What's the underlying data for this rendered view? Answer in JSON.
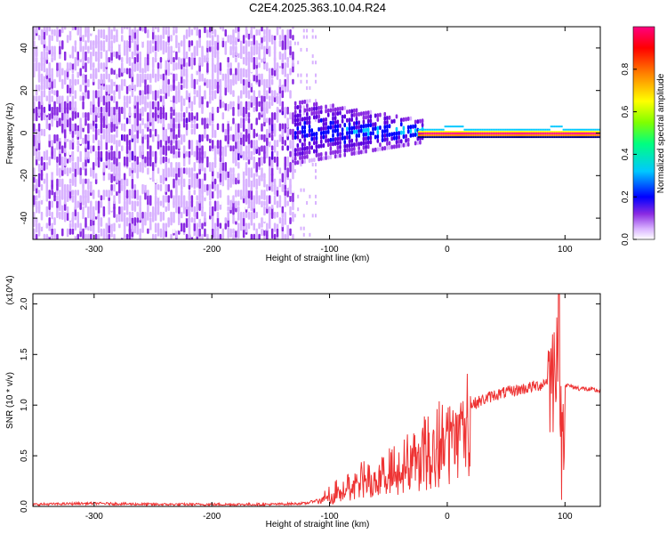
{
  "title": "C2E4.2025.363.10.04.R24",
  "chart_data": [
    {
      "type": "heatmap",
      "xlabel": "Height of straight line (km)",
      "ylabel": "Frequency (Hz)",
      "xlim": [
        -352,
        130
      ],
      "ylim": [
        -50,
        50
      ],
      "xticks": [
        -300,
        -200,
        -100,
        0,
        100
      ],
      "yticks": [
        -40,
        -20,
        0,
        20,
        40
      ],
      "colorbar": {
        "label": "Normalized spectral amplitude",
        "range": [
          0,
          1
        ],
        "ticks": [
          "0.0",
          "0.2",
          "0.4",
          "0.6",
          "0.8"
        ],
        "colors": [
          "#ffffff",
          "#d9b3ff",
          "#8a2be2",
          "#5b00e0",
          "#0000ff",
          "#00c8ff",
          "#00ff80",
          "#80ff00",
          "#ffff00",
          "#ff8000",
          "#ff0000",
          "#ff0080"
        ]
      },
      "features": [
        {
          "x_range": [
            -352,
            -130
          ],
          "freq_range": [
            -50,
            50
          ],
          "amplitude": 0.12
        },
        {
          "x_range": [
            -130,
            -20
          ],
          "freq_range": [
            -15,
            15
          ],
          "amplitude": 0.3
        },
        {
          "x_range": [
            -20,
            130
          ],
          "freq_center": 0,
          "amplitude": 1.0
        }
      ]
    },
    {
      "type": "line",
      "xlabel": "Height of straight line (km)",
      "ylabel": "SNR (10 * v/v)",
      "y_multiplier": "(x10^4)",
      "xlim": [
        -352,
        130
      ],
      "ylim": [
        0,
        2.1
      ],
      "xticks": [
        -300,
        -200,
        -100,
        0,
        100
      ],
      "yticks": [
        "0.0",
        "0.5",
        "1.0",
        "1.5",
        "2.0"
      ],
      "color": "#ee3333",
      "series": [
        {
          "x": [
            -352,
            -300,
            -250,
            -200,
            -150,
            -120,
            -100,
            -80,
            -60,
            -40,
            -20,
            0,
            20,
            40,
            60,
            80,
            90,
            95,
            97,
            100,
            110,
            130
          ],
          "y": [
            0.02,
            0.03,
            0.02,
            0.02,
            0.02,
            0.03,
            0.1,
            0.25,
            0.3,
            0.4,
            0.6,
            0.8,
            1.0,
            1.1,
            1.15,
            1.2,
            1.3,
            1.9,
            0.5,
            1.2,
            1.17,
            1.14
          ]
        }
      ]
    }
  ]
}
